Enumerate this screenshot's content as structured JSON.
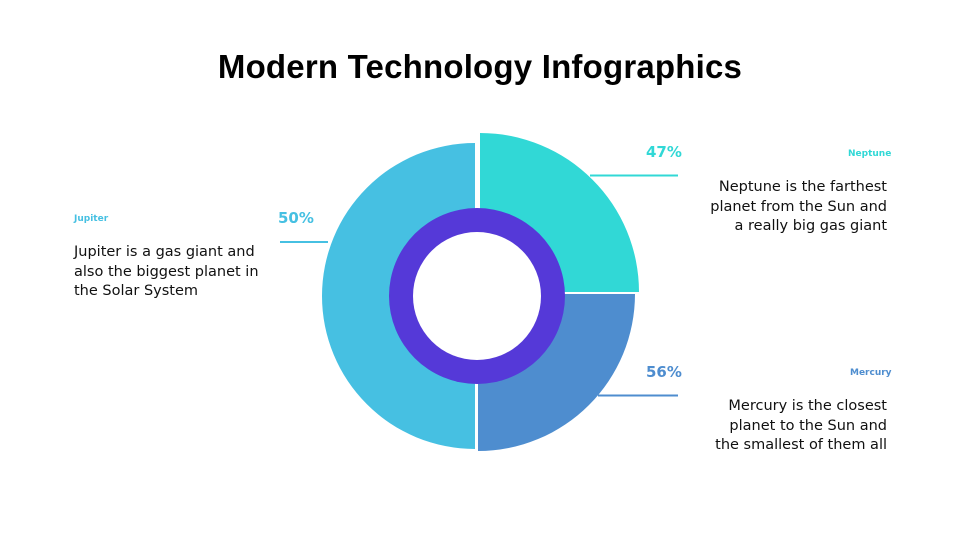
{
  "title": "Modern Technology Infographics",
  "colors": {
    "jupiter": "#46C0E2",
    "neptune": "#31D8D6",
    "mercury": "#4E8DCF",
    "ring": "#5539D8"
  },
  "chart_data": {
    "type": "pie",
    "variant": "donut",
    "series": [
      {
        "name": "Neptune",
        "label": "47%",
        "value": 47,
        "color": "#31D8D6",
        "description": "Neptune is the farthest planet from the Sun and a really big gas giant"
      },
      {
        "name": "Mercury",
        "label": "56%",
        "value": 56,
        "color": "#4E8DCF",
        "description": "Mercury is the closest planet to the Sun and the smallest of them all"
      },
      {
        "name": "Jupiter",
        "label": "50%",
        "value": 50,
        "color": "#46C0E2",
        "description": "Jupiter is a gas giant and also the biggest planet in the Solar System"
      }
    ]
  },
  "callouts": {
    "neptune": {
      "name": "Neptune",
      "pct": "47%",
      "lines": [
        "Neptune is the farthest",
        "planet from the Sun and",
        "a really big gas giant"
      ]
    },
    "mercury": {
      "name": "Mercury",
      "pct": "56%",
      "lines": [
        "Mercury is the closest",
        "planet to the Sun and",
        "the smallest of them all"
      ]
    },
    "jupiter": {
      "name": "Jupiter",
      "pct": "50%",
      "lines": [
        "Jupiter is a gas giant and",
        "also the biggest planet in",
        "the Solar System"
      ]
    }
  }
}
